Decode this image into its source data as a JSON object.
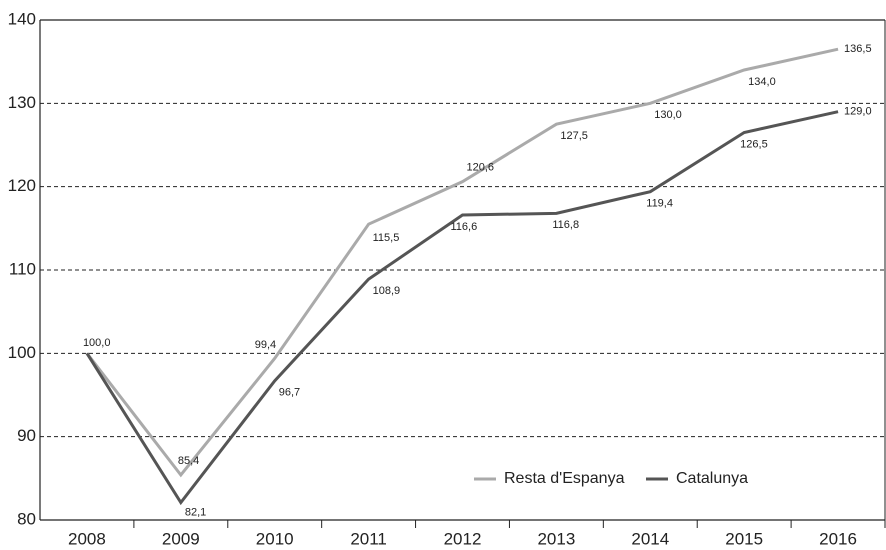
{
  "chart_data": {
    "type": "line",
    "categories": [
      "2008",
      "2009",
      "2010",
      "2011",
      "2012",
      "2013",
      "2014",
      "2015",
      "2016"
    ],
    "series": [
      {
        "name": "Resta d'Espanya",
        "color": "#aaaaaa",
        "values": [
          100.0,
          85.4,
          99.4,
          115.5,
          120.6,
          127.5,
          130.0,
          134.0,
          136.5
        ],
        "value_labels": [
          "100,0",
          "85,4",
          "99,4",
          "115,5",
          "120,6",
          "127,5",
          "130,0",
          "134,0",
          "136,5"
        ]
      },
      {
        "name": "Catalunya",
        "color": "#555555",
        "values": [
          100.0,
          82.1,
          96.7,
          108.9,
          116.6,
          116.8,
          119.4,
          126.5,
          129.0
        ],
        "value_labels": [
          null,
          "82,1",
          "96,7",
          "108,9",
          "116,6",
          "116,8",
          "119,4",
          "126,5",
          "129,0"
        ]
      }
    ],
    "ylim": [
      80,
      140
    ],
    "yticks": [
      80,
      90,
      100,
      110,
      120,
      130,
      140
    ],
    "grid": true,
    "legend": "bottom-right"
  }
}
